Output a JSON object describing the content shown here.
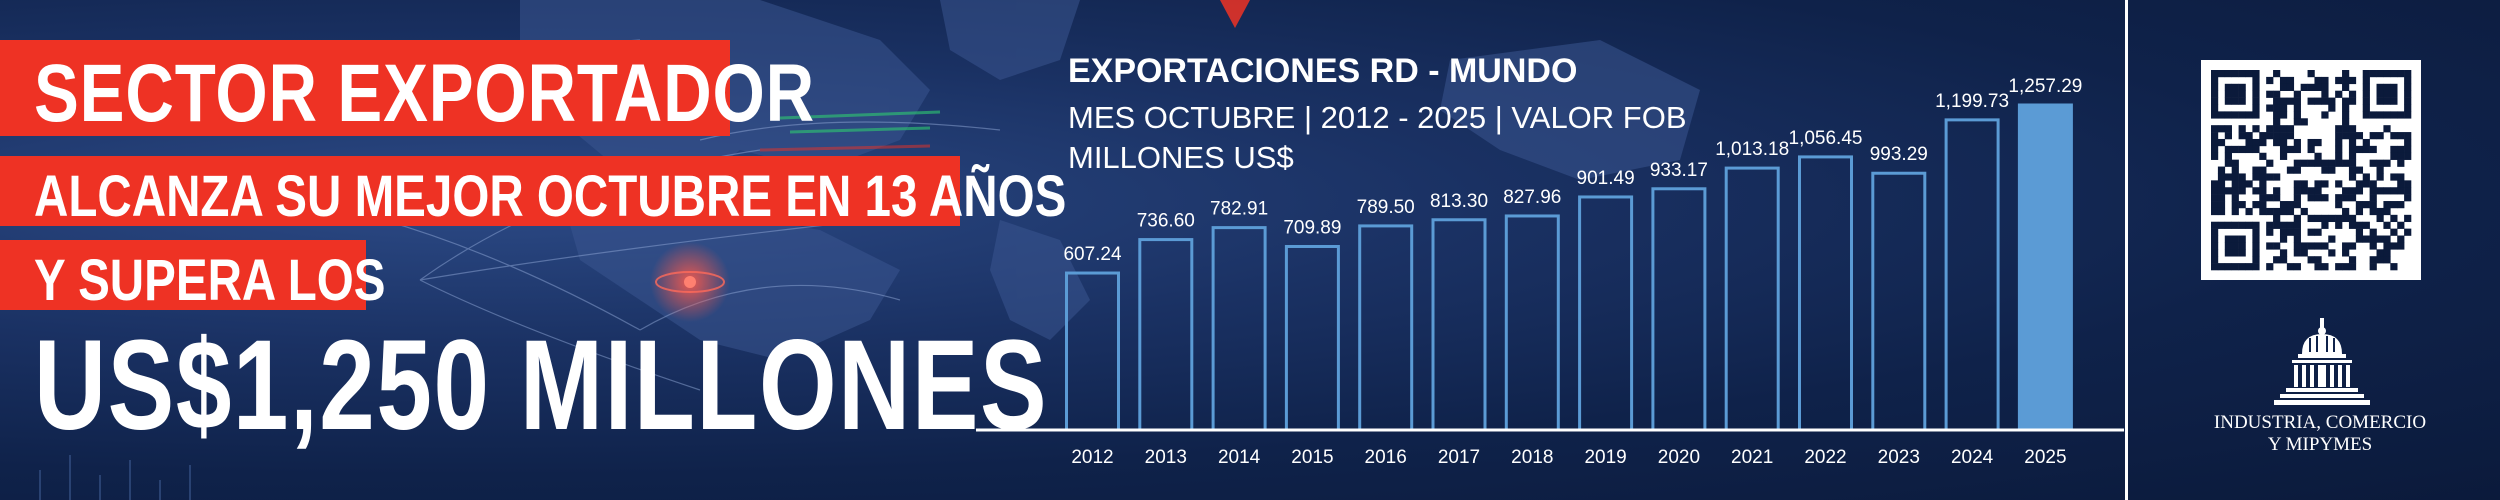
{
  "headline": {
    "line1": "SECTOR EXPORTADOR",
    "line2": "ALCANZA SU MEJOR OCTUBRE EN 13 AÑOS",
    "line3": "Y SUPERA LOS",
    "line4": "US$1,250 MILLONES"
  },
  "chart_data": {
    "type": "bar",
    "title": "EXPORTACIONES RD - MUNDO",
    "subtitle": "MES OCTUBRE | 2012 - 2025 | VALOR FOB",
    "unit": "MILLONES US$",
    "categories": [
      "2012",
      "2013",
      "2014",
      "2015",
      "2016",
      "2017",
      "2018",
      "2019",
      "2020",
      "2021",
      "2022",
      "2023",
      "2024",
      "2025"
    ],
    "values": [
      607.24,
      736.6,
      782.91,
      709.89,
      789.5,
      813.3,
      827.96,
      901.49,
      933.17,
      1013.18,
      1056.45,
      993.29,
      1199.73,
      1257.29
    ],
    "value_labels": [
      "607.24",
      "736.60",
      "782.91",
      "709.89",
      "789.50",
      "813.30",
      "827.96",
      "901.49",
      "933.17",
      "1,013.18",
      "1,056.45",
      "993.29",
      "1,199.73",
      "1,257.29"
    ],
    "highlight_category": "2025",
    "colors": {
      "bar_outline": "#5b9bd5",
      "highlight_fill": "#5b9bd5",
      "axis": "#ffffff",
      "text": "#ffffff"
    }
  },
  "logo": {
    "text_line1": "INDUSTRIA, COMERCIO",
    "text_line2": "Y MIPYMES"
  },
  "colors": {
    "background": "#0f224a",
    "accent_red": "#ee3224",
    "text": "#ffffff"
  }
}
